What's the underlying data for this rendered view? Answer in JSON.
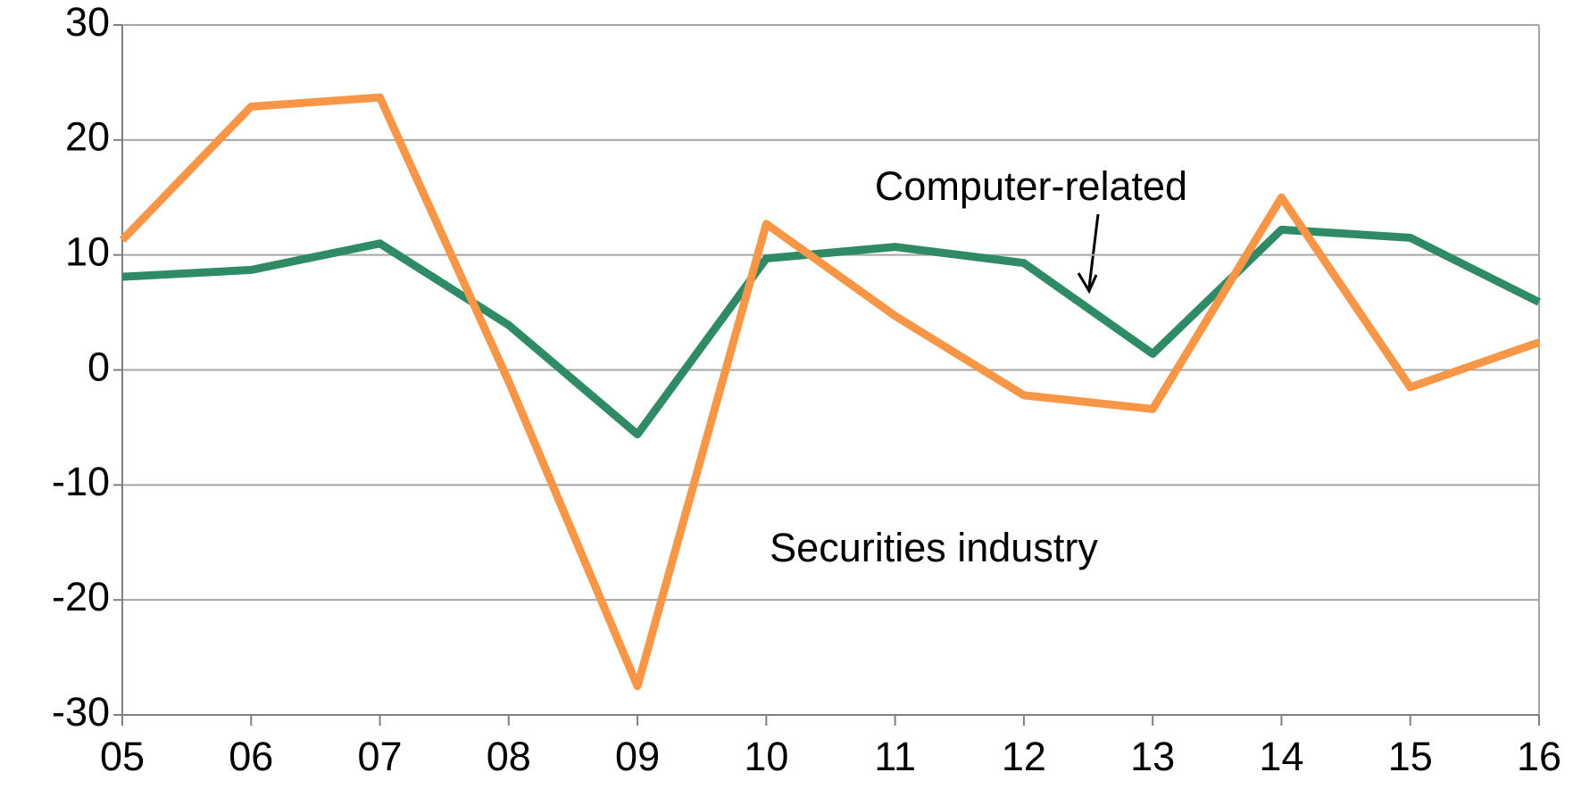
{
  "chart_data": {
    "type": "line",
    "categories": [
      "05",
      "06",
      "07",
      "08",
      "09",
      "10",
      "11",
      "12",
      "13",
      "14",
      "15",
      "16"
    ],
    "series": [
      {
        "name": "Computer-related",
        "color": "#2e8b66",
        "values": [
          8.1,
          8.7,
          11.0,
          3.9,
          -5.6,
          9.7,
          10.7,
          9.3,
          1.4,
          12.2,
          11.5,
          5.9
        ]
      },
      {
        "name": "Securities industry",
        "color": "#f79646",
        "values": [
          11.3,
          22.9,
          23.7,
          -1.0,
          -27.5,
          12.7,
          4.7,
          -2.2,
          -3.4,
          15.0,
          -1.5,
          2.4
        ]
      }
    ],
    "ylim": [
      -30,
      30
    ],
    "yticks": [
      -30,
      -20,
      -10,
      0,
      10,
      20,
      30
    ],
    "grid": true
  }
}
